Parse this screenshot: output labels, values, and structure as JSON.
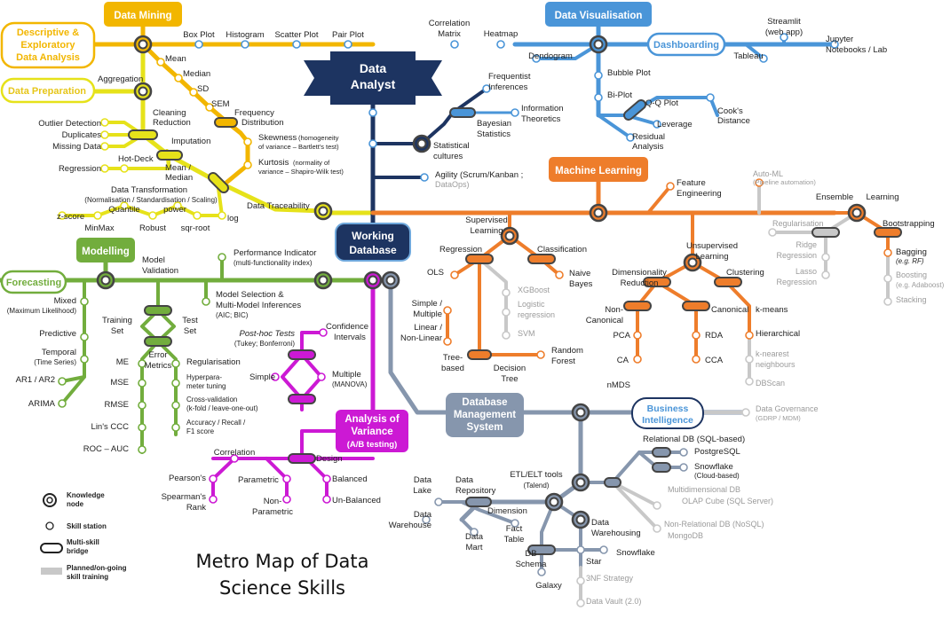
{
  "title": [
    "Metro Map of Data",
    "Science Skills"
  ],
  "colors": {
    "mining": "#f2b600",
    "viz": "#4a95d8",
    "ml": "#ee7d2b",
    "prep": "#e6e21a",
    "model": "#72ad3d",
    "anova": "#cc19d4",
    "db": "#8696ad",
    "analyst": "#1d3461",
    "planned": "#c8c8c8",
    "planned_text": "#9b9b9b"
  },
  "hubs": {
    "data_analyst": [
      "Data",
      "Analyst"
    ],
    "working_database": [
      "Working",
      "Database"
    ],
    "data_mining": "Data Mining",
    "data_visualisation": "Data Visualisation",
    "machine_learning": "Machine Learning",
    "modelling": "Modelling",
    "forecasting": "Forecasting",
    "data_preparation": "Data Preparation",
    "descriptive": [
      "Descriptive &",
      "Exploratory",
      "Data Analysis"
    ],
    "dashboarding": "Dashboarding",
    "business_intelligence": [
      "Business",
      "Intelligence"
    ],
    "dbms": [
      "Database",
      "Management",
      "System"
    ],
    "anova": [
      "Analysis of",
      "Variance",
      "(A/B testing)"
    ]
  },
  "labels": {
    "box_plot": "Box Plot",
    "histogram": "Histogram",
    "scatter_plot": "Scatter Plot",
    "pair_plot": "Pair Plot",
    "correlation_matrix": [
      "Correlation",
      "Matrix"
    ],
    "heatmap": "Heatmap",
    "dendogram": "Dendogram",
    "streamlit": [
      "Streamlit",
      "(web app)"
    ],
    "tableau": "Tableau",
    "jupyter": [
      "Jupyter",
      "Notebooks / Lab"
    ],
    "bubble_plot": "Bubble Plot",
    "bi_plot": "Bi-Plot",
    "qq_plot": "Q-Q Plot",
    "leverage": "Leverage",
    "cooks": [
      "Cook's",
      "Distance"
    ],
    "residual": [
      "Residual",
      "Analysis"
    ],
    "mean": "Mean",
    "median": "Median",
    "sd": "SD",
    "sem": "SEM",
    "freq": [
      "Frequency",
      "Distribution"
    ],
    "skewness": "Skewness",
    "skewness_note": "(homogeneity",
    "skewness_note2": "of variance – Bartlett's test)",
    "kurtosis": "Kurtosis",
    "kurtosis_note": "(normality of",
    "kurtosis_note2": "variance – Shapiro-Wilk test)",
    "aggregation": "Aggregation",
    "cleaning": [
      "Cleaning",
      "Reduction"
    ],
    "outlier": "Outlier Detection",
    "duplicates": "Duplicates",
    "missing": "Missing Data",
    "imputation": "Imputation",
    "regression_prep": "Regression",
    "hot_deck": "Hot-Deck",
    "mean_median": [
      "Mean /",
      "Median"
    ],
    "transformation": [
      "Data Transformation",
      "(Normalisation / Standardisation / Scaling)"
    ],
    "zscore": "z-score",
    "minmax": "MinMax",
    "quantile": "Quantile",
    "robust": "Robust",
    "power": "power",
    "sqrroot": "sqr-root",
    "log": "log",
    "traceability": "Data Traceability",
    "frequentist": [
      "Frequentist",
      "Inferences"
    ],
    "bayesian": [
      "Bayesian",
      "Statistics"
    ],
    "info_theoretics": [
      "Information",
      "Theoretics"
    ],
    "statistical_cultures": [
      "Statistical",
      "cultures"
    ],
    "agility": "Agility (Scrum/Kanban ;",
    "dataops": "DataOps)",
    "feature_eng": [
      "Feature",
      "Engineering"
    ],
    "automl": "Auto-ML",
    "automl_note": "(Pipeline automation)",
    "ensemble": "Ensemble",
    "learning": "Learning",
    "regularisation_ml": "Regularisation",
    "ridge": [
      "Ridge",
      "Regression"
    ],
    "lasso": [
      "Lasso",
      "Regression"
    ],
    "bootstrapping": "Bootstrapping",
    "bagging": "Bagging",
    "bagging_note": "(e.g. RF)",
    "boosting": "Boosting",
    "boosting_note": "(e.g. Adaboost)",
    "stacking": "Stacking",
    "supervised": [
      "Supervised",
      "Learning"
    ],
    "regression_ml": "Regression",
    "classification": "Classification",
    "ols": "OLS",
    "simple_multiple": [
      "Simple /",
      "Multiple"
    ],
    "linear_nonlinear": [
      "Linear /",
      "Non-Linear"
    ],
    "tree_based": [
      "Tree-",
      "based"
    ],
    "decision_tree": [
      "Decision",
      "Tree"
    ],
    "random_forest": [
      "Random",
      "Forest"
    ],
    "xgboost": "XGBoost",
    "logistic": [
      "Logistic",
      "regression"
    ],
    "svm": "SVM",
    "naive_bayes": [
      "Naive",
      "Bayes"
    ],
    "unsupervised": [
      "Unsupervised",
      "Learning"
    ],
    "dim_reduction": [
      "Dimensionality",
      "Reduction"
    ],
    "clustering": "Clustering",
    "non_canonical": [
      "Non-",
      "Canonical"
    ],
    "canonical": "Canonical",
    "pca": "PCA",
    "ca": "CA",
    "nmds": "nMDS",
    "rda": "RDA",
    "cca": "CCA",
    "kmeans": "k-means",
    "hierarchical": "Hierarchical",
    "knn": [
      "k-nearest",
      "neighbours"
    ],
    "dbscan": "DBScan",
    "performance": [
      "Performance Indicator",
      "(multi-functionality index)"
    ],
    "model_validation": [
      "Model",
      "Validation"
    ],
    "model_selection": [
      "Model Selection &",
      "Multi-Model Inferences",
      "(AIC; BIC)"
    ],
    "mixed": [
      "Mixed",
      "(Maximum Likelihood)"
    ],
    "predictive": "Predictive",
    "temporal": [
      "Temporal",
      "(Time Series)"
    ],
    "ar": "AR1 / AR2",
    "arima": "ARIMA",
    "training_set": [
      "Training",
      "Set"
    ],
    "test_set": [
      "Test",
      "Set"
    ],
    "error_metrics": [
      "Error",
      "Metrics"
    ],
    "me": "ME",
    "mse": "MSE",
    "rmse": "RMSE",
    "lins_ccc": "Lin's CCC",
    "roc": "ROC – AUC",
    "regularisation_mod": "Regularisation",
    "hyperparam": [
      "Hyperpara-",
      "meter tuning"
    ],
    "crossval": [
      "Cross-validation",
      "(k-fold / leave-one-out)"
    ],
    "accuracy": [
      "Accuracy / Recall /",
      "F1 score"
    ],
    "confidence": [
      "Confidence",
      "Intervals"
    ],
    "posthoc": [
      "Post-hoc Tests",
      "(Tukey; Bonferroni)"
    ],
    "simple": "Simple",
    "multiple": [
      "Multiple",
      "(MANOVA)"
    ],
    "design": "Design",
    "correlation": "Correlation",
    "pearson": "Pearson's",
    "spearman": [
      "Spearman's",
      "Rank"
    ],
    "parametric": "Parametric",
    "non_parametric": [
      "Non-",
      "Parametric"
    ],
    "balanced": "Balanced",
    "unbalanced": "Un-Balanced",
    "data_governance": [
      "Data Governance",
      "(GDRP / MDM)"
    ],
    "relational": "Relational DB (SQL-based)",
    "postgresql": "PostgreSQL",
    "snowflake_db": [
      "Snowflake",
      "(Cloud-based)"
    ],
    "multidimensional": "Multidimensional DB",
    "olap": "OLAP Cube (SQL Server)",
    "nonrelational": "Non-Relational DB (NoSQL)",
    "mongodb": "MongoDB",
    "etl": [
      "ETL/ELT tools",
      "(Talend)"
    ],
    "data_lake": [
      "Data",
      "Lake"
    ],
    "data_repository": [
      "Data",
      "Repository"
    ],
    "data_warehouse": [
      "Data",
      "Warehouse"
    ],
    "dimension": "Dimension",
    "fact_table": [
      "Fact",
      "Table"
    ],
    "data_mart": [
      "Data",
      "Mart"
    ],
    "data_warehousing": [
      "Data",
      "Warehousing"
    ],
    "db_schema": [
      "DB",
      "Schema"
    ],
    "star": "Star",
    "snowflake_schema": "Snowflake",
    "galaxy": "Galaxy",
    "third_nf": "3NF Strategy",
    "data_vault": "Data Vault (2.0)"
  },
  "legend": {
    "knowledge_node": [
      "Knowledge",
      "node"
    ],
    "skill_station": "Skill station",
    "multi_skill": [
      "Multi-skill",
      "bridge"
    ],
    "planned": [
      "Planned/on-going",
      "skill training"
    ]
  }
}
